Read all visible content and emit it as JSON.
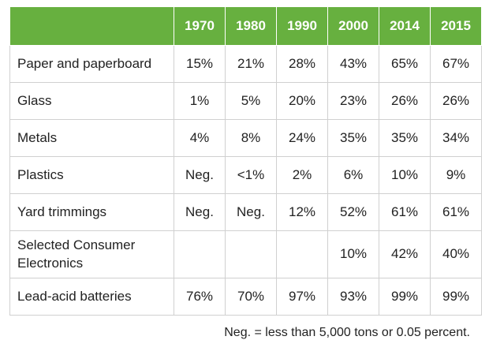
{
  "chart_data": {
    "type": "table",
    "columns": [
      "",
      "1970",
      "1980",
      "1990",
      "2000",
      "2014",
      "2015"
    ],
    "rows": [
      {
        "label": "Paper and paperboard",
        "values": [
          "15%",
          "21%",
          "28%",
          "43%",
          "65%",
          "67%"
        ]
      },
      {
        "label": "Glass",
        "values": [
          "1%",
          "5%",
          "20%",
          "23%",
          "26%",
          "26%"
        ]
      },
      {
        "label": "Metals",
        "values": [
          "4%",
          "8%",
          "24%",
          "35%",
          "35%",
          "34%"
        ]
      },
      {
        "label": "Plastics",
        "values": [
          "Neg.",
          "<1%",
          "2%",
          "6%",
          "10%",
          "9%"
        ]
      },
      {
        "label": "Yard trimmings",
        "values": [
          "Neg.",
          "Neg.",
          "12%",
          "52%",
          "61%",
          "61%"
        ]
      },
      {
        "label": "Selected Consumer Electronics",
        "values": [
          "",
          "",
          "",
          "10%",
          "42%",
          "40%"
        ]
      },
      {
        "label": "Lead-acid batteries",
        "values": [
          "76%",
          "70%",
          "97%",
          "93%",
          "99%",
          "99%"
        ]
      }
    ],
    "footnote": "Neg. = less than 5,000 tons or 0.05 percent.",
    "header_color": "#67b03f"
  }
}
